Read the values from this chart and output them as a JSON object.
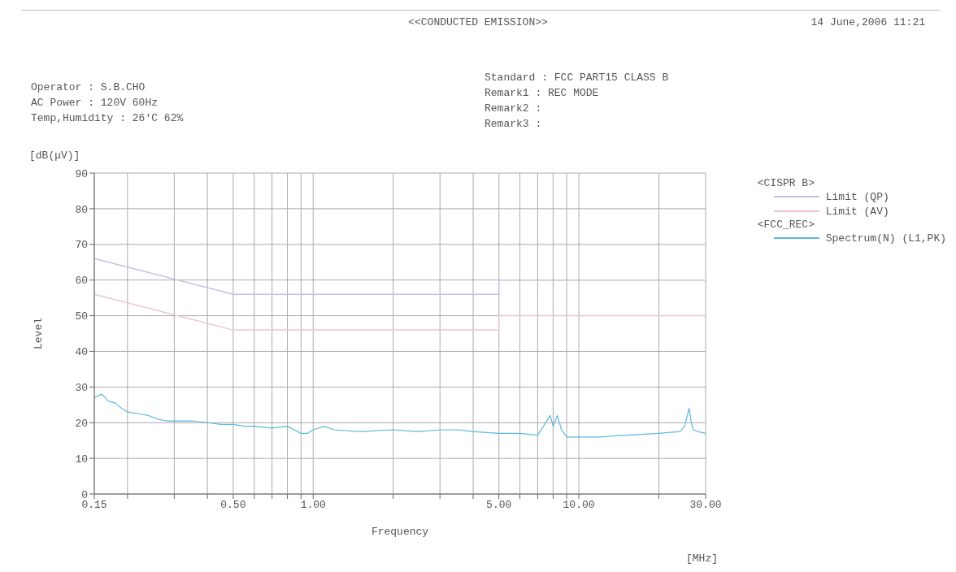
{
  "chart_data": {
    "type": "line",
    "title": "<<CONDUCTED EMISSION>>",
    "xlabel": "Frequency",
    "ylabel": "Level",
    "annotations": [
      "14 June,2006 11:21",
      "Operator : S.B.CHO",
      "AC Power : 120V 60Hz",
      "Temp,Humidity : 26'C 62%",
      "Standard : FCC PART15 CLASS B",
      "Remark1 : REC MODE",
      "Remark2 :",
      "Remark3 :",
      "[dB(μV)]",
      "[MHz]",
      "<CISPR B>",
      "<FCC_REC>"
    ],
    "log": "x",
    "grid": true,
    "legend": "top right",
    "marker": "none",
    "line_style": "solid",
    "xlim": [
      0.15,
      30
    ],
    "xticks": [
      0.15,
      {
        "value": 0.2,
        "label": null
      },
      {
        "value": 0.3,
        "label": null
      },
      {
        "value": 0.4,
        "label": null
      },
      {
        "value": 0.5,
        "label": "0.50"
      },
      {
        "value": 0.6,
        "label": null
      },
      {
        "value": 0.7,
        "label": null
      },
      {
        "value": 0.8,
        "label": null
      },
      {
        "value": 0.9,
        "label": null
      },
      {
        "value": 1,
        "label": "1.00"
      },
      {
        "value": 2,
        "label": null
      },
      {
        "value": 3,
        "label": null
      },
      {
        "value": 4,
        "label": null
      },
      {
        "value": 5,
        "label": "5.00"
      },
      {
        "value": 6,
        "label": null
      },
      {
        "value": 7,
        "label": null
      },
      {
        "value": 8,
        "label": null
      },
      {
        "value": 9,
        "label": null
      },
      {
        "value": 10,
        "label": "10.00"
      },
      {
        "value": 20,
        "label": null
      },
      {
        "value": 30,
        "label": "30.00"
      }
    ],
    "ylim": [
      0,
      90
    ],
    "yticks": [
      0,
      10,
      20,
      30,
      40,
      50,
      60,
      70,
      80,
      90
    ],
    "series": [
      {
        "name": "Limit (QP)",
        "color": "#c9bfe6",
        "x": [
          0.15,
          0.5,
          5,
          5,
          30
        ],
        "values": [
          66,
          56,
          56,
          60,
          60
        ]
      },
      {
        "name": "Limit (AV)",
        "color": "#ecc6cc",
        "x": [
          0.15,
          0.5,
          5,
          5,
          30
        ],
        "values": [
          56,
          46,
          46,
          50,
          50
        ]
      },
      {
        "name": "Spectrum(N) (L1,PK)",
        "color": "#5bb8e0",
        "x": [
          0.15,
          0.16,
          0.17,
          0.18,
          0.19,
          0.2,
          0.22,
          0.24,
          0.26,
          0.28,
          0.3,
          0.35,
          0.4,
          0.45,
          0.5,
          0.55,
          0.6,
          0.7,
          0.8,
          0.85,
          0.9,
          0.95,
          1,
          1.1,
          1.2,
          1.5,
          2,
          2.5,
          3,
          3.5,
          4,
          5,
          6,
          7,
          7.5,
          7.8,
          8,
          8.3,
          8.6,
          9,
          10,
          12,
          15,
          20,
          24,
          25,
          26,
          26.5,
          27,
          28,
          30
        ],
        "values": [
          27,
          28,
          26,
          25.5,
          24,
          23,
          22.5,
          22,
          21,
          20.5,
          20.5,
          20.5,
          20,
          19.5,
          19.5,
          19,
          19,
          18.5,
          19,
          18,
          17,
          17,
          18,
          19,
          18,
          17.5,
          18,
          17.5,
          18,
          18,
          17.5,
          17,
          17,
          16.5,
          20,
          22,
          19,
          22,
          18,
          16,
          16,
          16,
          16.5,
          17,
          17.5,
          19,
          24,
          20,
          18,
          17.5,
          17
        ]
      }
    ]
  }
}
